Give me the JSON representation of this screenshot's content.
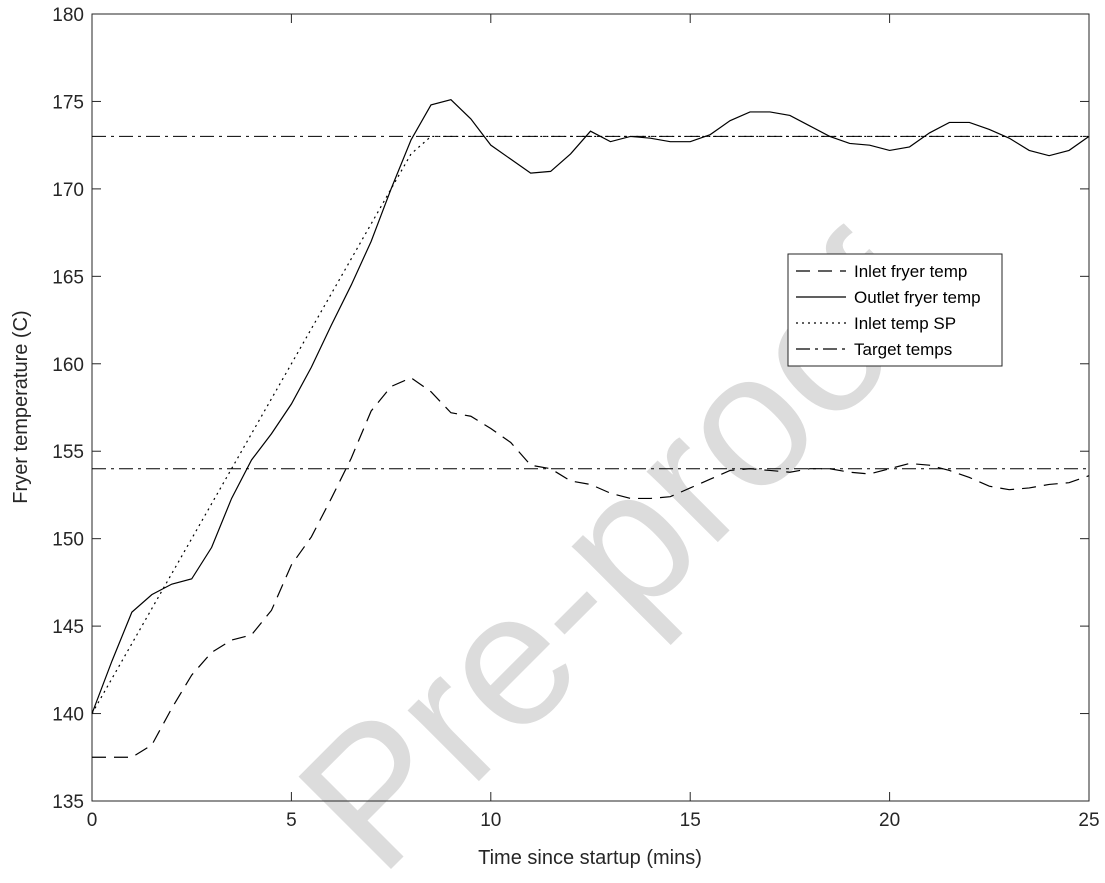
{
  "chart_data": {
    "type": "line",
    "xlabel": "Time since startup (mins)",
    "ylabel": "Fryer temperature (C)",
    "watermark": "Pre-proof",
    "xlim": [
      0,
      25
    ],
    "xticks": [
      0,
      5,
      10,
      15,
      20,
      25
    ],
    "ylim": [
      135,
      180
    ],
    "yticks": [
      135,
      140,
      145,
      150,
      155,
      160,
      165,
      170,
      175,
      180
    ],
    "legend": "upper-right",
    "x": [
      0,
      0.5,
      1,
      1.5,
      2,
      2.5,
      3,
      3.5,
      4,
      4.5,
      5,
      5.5,
      6,
      6.5,
      7,
      7.5,
      8,
      8.5,
      9,
      9.5,
      10,
      10.5,
      11,
      11.5,
      12,
      12.5,
      13,
      13.5,
      14,
      14.5,
      15,
      15.5,
      16,
      16.5,
      17,
      17.5,
      18,
      18.5,
      19,
      19.5,
      20,
      20.5,
      21,
      21.5,
      22,
      22.5,
      23,
      23.5,
      24,
      24.5,
      25
    ],
    "series": [
      {
        "name": "Inlet fryer temp",
        "color": "#000000",
        "dash": "dashed",
        "values": [
          137.5,
          137.5,
          137.5,
          138.2,
          140.3,
          142.2,
          143.5,
          144.2,
          144.5,
          145.9,
          148.5,
          150.1,
          152.3,
          154.6,
          157.3,
          158.7,
          159.2,
          158.4,
          157.2,
          157.0,
          156.3,
          155.5,
          154.2,
          154.0,
          153.3,
          153.1,
          152.6,
          152.3,
          152.3,
          152.4,
          152.9,
          153.4,
          153.9,
          154.0,
          153.9,
          153.8,
          154.0,
          154.0,
          153.8,
          153.7,
          154.0,
          154.3,
          154.2,
          153.9,
          153.5,
          153.0,
          152.8,
          152.9,
          153.1,
          153.2,
          153.6
        ]
      },
      {
        "name": "Outlet fryer temp",
        "color": "#000000",
        "dash": "solid",
        "values": [
          140,
          143,
          145.8,
          146.8,
          147.4,
          147.7,
          149.5,
          152.3,
          154.5,
          156,
          157.7,
          159.8,
          162.2,
          164.5,
          167,
          170,
          172.8,
          174.8,
          175.1,
          174,
          172.5,
          171.7,
          170.9,
          171,
          172,
          173.3,
          172.7,
          173,
          172.9,
          172.7,
          172.7,
          173.1,
          173.9,
          174.4,
          174.4,
          174.2,
          173.6,
          173,
          172.6,
          172.5,
          172.2,
          172.4,
          173.2,
          173.8,
          173.8,
          173.4,
          172.9,
          172.2,
          171.9,
          172.2,
          173
        ]
      },
      {
        "name": "Inlet temp SP",
        "color": "#000000",
        "dash": "dotted",
        "values": [
          140,
          142,
          144,
          146,
          148,
          150,
          152,
          154,
          156,
          158,
          160,
          162,
          164,
          166,
          168,
          170,
          172,
          173,
          173,
          173,
          173,
          173,
          173,
          173,
          173,
          173,
          173,
          173,
          173,
          173,
          173,
          173,
          173,
          173,
          173,
          173,
          173,
          173,
          173,
          173,
          173,
          173,
          173,
          173,
          173,
          173,
          173,
          173,
          173,
          173,
          173
        ]
      },
      {
        "name": "Target temps",
        "color": "#000000",
        "dash": "dashdot",
        "levels": [
          173,
          154
        ]
      }
    ]
  }
}
